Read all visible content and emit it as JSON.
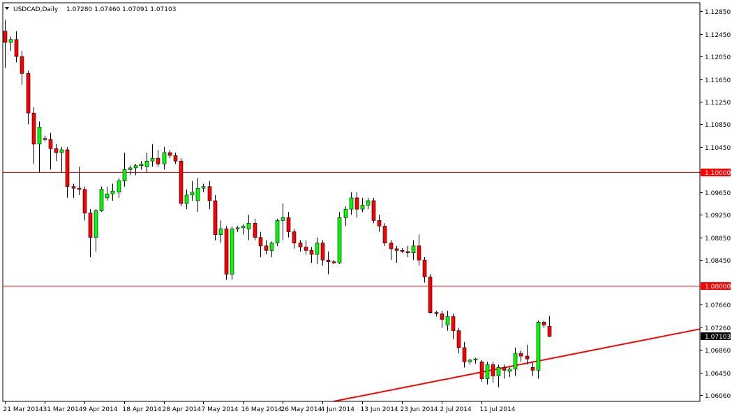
{
  "chart_data": {
    "type": "candlestick",
    "title": "USDCAD,Daily",
    "header_ohlc": "1.07280 1.07460 1.07091 1.07103",
    "symbol_menu_icon": "triangle-down-icon",
    "ylim": [
      1.0595,
      1.13
    ],
    "y_ticks": [
      "1.12850",
      "1.12450",
      "1.12050",
      "1.11650",
      "1.11250",
      "1.10850",
      "1.10450",
      "1.10000",
      "1.09650",
      "1.09250",
      "1.08850",
      "1.08450",
      "1.08000",
      "1.07660",
      "1.07260",
      "1.06860",
      "1.06450",
      "1.06060"
    ],
    "x_labels": [
      "21 Mar 2014",
      "31 Mar 2014",
      "9 Apr 2014",
      "18 Apr 2014",
      "28 Apr 2014",
      "7 May 2014",
      "16 May 2014",
      "26 May 2014",
      "4 Jun 2014",
      "13 Jun 2014",
      "23 Jun 2014",
      "2 Jul 2014",
      "11 Jul 2014"
    ],
    "x_label_bar_index": [
      0,
      7,
      14,
      21,
      28,
      35,
      42,
      49,
      56,
      63,
      70,
      77,
      84
    ],
    "levels": [
      {
        "value": 1.1,
        "label": "1.10000",
        "color": "#ff0000"
      },
      {
        "value": 1.08,
        "label": "1.08000",
        "color": "#ff0000"
      }
    ],
    "current_price": {
      "value": 1.07103,
      "label": "1.07103"
    },
    "trendline": {
      "color": "#ff0000",
      "from": [
        58,
        1.0595
      ],
      "to": [
        111,
        1.07
      ]
    },
    "colors": {
      "bull": "#00ff00",
      "bear": "#ff0000",
      "wick": "#000000",
      "grid_line": "#ff0000",
      "axis": "#000000"
    },
    "candles": [
      {
        "o": 1.125,
        "h": 1.127,
        "l": 1.1185,
        "c": 1.123
      },
      {
        "o": 1.123,
        "h": 1.124,
        "l": 1.1215,
        "c": 1.1235
      },
      {
        "o": 1.1235,
        "h": 1.125,
        "l": 1.1195,
        "c": 1.1205
      },
      {
        "o": 1.1205,
        "h": 1.1215,
        "l": 1.1155,
        "c": 1.1175
      },
      {
        "o": 1.1175,
        "h": 1.118,
        "l": 1.1085,
        "c": 1.1105
      },
      {
        "o": 1.1105,
        "h": 1.1115,
        "l": 1.1015,
        "c": 1.105
      },
      {
        "o": 1.105,
        "h": 1.109,
        "l": 1.1,
        "c": 1.108
      },
      {
        "o": 1.106,
        "h": 1.1065,
        "l": 1.1055,
        "c": 1.1058
      },
      {
        "o": 1.1058,
        "h": 1.107,
        "l": 1.1005,
        "c": 1.1042
      },
      {
        "o": 1.1042,
        "h": 1.105,
        "l": 1.102,
        "c": 1.1035
      },
      {
        "o": 1.1035,
        "h": 1.1045,
        "l": 1.1,
        "c": 1.104
      },
      {
        "o": 1.104,
        "h": 1.1045,
        "l": 1.0955,
        "c": 1.0975
      },
      {
        "o": 1.0975,
        "h": 1.098,
        "l": 1.0955,
        "c": 1.0972
      },
      {
        "o": 1.0972,
        "h": 1.101,
        "l": 1.096,
        "c": 1.097
      },
      {
        "o": 1.097,
        "h": 1.0975,
        "l": 1.0915,
        "c": 1.0928
      },
      {
        "o": 1.0928,
        "h": 1.0935,
        "l": 1.085,
        "c": 1.0885
      },
      {
        "o": 1.0885,
        "h": 1.0935,
        "l": 1.086,
        "c": 1.0932
      },
      {
        "o": 1.0932,
        "h": 1.0975,
        "l": 1.093,
        "c": 1.097
      },
      {
        "o": 1.0955,
        "h": 1.0975,
        "l": 1.095,
        "c": 1.0962
      },
      {
        "o": 1.0962,
        "h": 1.098,
        "l": 1.095,
        "c": 1.0967
      },
      {
        "o": 1.0965,
        "h": 1.099,
        "l": 1.0955,
        "c": 1.0985
      },
      {
        "o": 1.0985,
        "h": 1.1035,
        "l": 1.0975,
        "c": 1.1005
      },
      {
        "o": 1.1005,
        "h": 1.1012,
        "l": 1.0995,
        "c": 1.1008
      },
      {
        "o": 1.1008,
        "h": 1.1015,
        "l": 1.0995,
        "c": 1.1012
      },
      {
        "o": 1.1012,
        "h": 1.102,
        "l": 1.1005,
        "c": 1.1015
      },
      {
        "o": 1.101,
        "h": 1.1035,
        "l": 1.1,
        "c": 1.102
      },
      {
        "o": 1.102,
        "h": 1.105,
        "l": 1.101,
        "c": 1.1025
      },
      {
        "o": 1.1025,
        "h": 1.104,
        "l": 1.101,
        "c": 1.1015
      },
      {
        "o": 1.1015,
        "h": 1.1045,
        "l": 1.1005,
        "c": 1.1035
      },
      {
        "o": 1.1035,
        "h": 1.104,
        "l": 1.1025,
        "c": 1.103
      },
      {
        "o": 1.103,
        "h": 1.1035,
        "l": 1.1015,
        "c": 1.102
      },
      {
        "o": 1.102,
        "h": 1.1025,
        "l": 1.094,
        "c": 1.0945
      },
      {
        "o": 1.0945,
        "h": 1.097,
        "l": 1.0935,
        "c": 1.096
      },
      {
        "o": 1.096,
        "h": 1.0985,
        "l": 1.095,
        "c": 1.0965
      },
      {
        "o": 1.095,
        "h": 1.099,
        "l": 1.093,
        "c": 1.0972
      },
      {
        "o": 1.0972,
        "h": 1.098,
        "l": 1.0965,
        "c": 1.0975
      },
      {
        "o": 1.0975,
        "h": 1.0985,
        "l": 1.0935,
        "c": 1.095
      },
      {
        "o": 1.095,
        "h": 1.096,
        "l": 1.088,
        "c": 1.089
      },
      {
        "o": 1.089,
        "h": 1.0915,
        "l": 1.0875,
        "c": 1.09
      },
      {
        "o": 1.09,
        "h": 1.0905,
        "l": 1.081,
        "c": 1.082
      },
      {
        "o": 1.082,
        "h": 1.0905,
        "l": 1.081,
        "c": 1.09
      },
      {
        "o": 1.09,
        "h": 1.0905,
        "l": 1.0895,
        "c": 1.0902
      },
      {
        "o": 1.0902,
        "h": 1.0908,
        "l": 1.089,
        "c": 1.0905
      },
      {
        "o": 1.09,
        "h": 1.0925,
        "l": 1.088,
        "c": 1.091
      },
      {
        "o": 1.091,
        "h": 1.0918,
        "l": 1.088,
        "c": 1.0885
      },
      {
        "o": 1.0885,
        "h": 1.0895,
        "l": 1.085,
        "c": 1.087
      },
      {
        "o": 1.087,
        "h": 1.088,
        "l": 1.0855,
        "c": 1.0862
      },
      {
        "o": 1.0862,
        "h": 1.0878,
        "l": 1.085,
        "c": 1.0875
      },
      {
        "o": 1.0875,
        "h": 1.0918,
        "l": 1.087,
        "c": 1.0915
      },
      {
        "o": 1.0915,
        "h": 1.0945,
        "l": 1.088,
        "c": 1.092
      },
      {
        "o": 1.092,
        "h": 1.093,
        "l": 1.0885,
        "c": 1.0895
      },
      {
        "o": 1.0895,
        "h": 1.09,
        "l": 1.0865,
        "c": 1.0875
      },
      {
        "o": 1.0875,
        "h": 1.088,
        "l": 1.086,
        "c": 1.0868
      },
      {
        "o": 1.0868,
        "h": 1.088,
        "l": 1.0855,
        "c": 1.0862
      },
      {
        "o": 1.0862,
        "h": 1.0868,
        "l": 1.084,
        "c": 1.0855
      },
      {
        "o": 1.0855,
        "h": 1.0885,
        "l": 1.0838,
        "c": 1.0875
      },
      {
        "o": 1.0875,
        "h": 1.088,
        "l": 1.0835,
        "c": 1.0845
      },
      {
        "o": 1.0845,
        "h": 1.086,
        "l": 1.082,
        "c": 1.0842
      },
      {
        "o": 1.0842,
        "h": 1.0845,
        "l": 1.0838,
        "c": 1.084
      },
      {
        "o": 1.084,
        "h": 1.093,
        "l": 1.0838,
        "c": 1.092
      },
      {
        "o": 1.092,
        "h": 1.094,
        "l": 1.0905,
        "c": 1.0935
      },
      {
        "o": 1.0935,
        "h": 1.0965,
        "l": 1.0925,
        "c": 1.0955
      },
      {
        "o": 1.0955,
        "h": 1.0965,
        "l": 1.092,
        "c": 1.0935
      },
      {
        "o": 1.0935,
        "h": 1.0955,
        "l": 1.093,
        "c": 1.0942
      },
      {
        "o": 1.0942,
        "h": 1.0955,
        "l": 1.0935,
        "c": 1.095
      },
      {
        "o": 1.095,
        "h": 1.0955,
        "l": 1.091,
        "c": 1.0915
      },
      {
        "o": 1.0915,
        "h": 1.0925,
        "l": 1.0895,
        "c": 1.0905
      },
      {
        "o": 1.0905,
        "h": 1.091,
        "l": 1.087,
        "c": 1.0875
      },
      {
        "o": 1.0875,
        "h": 1.088,
        "l": 1.0845,
        "c": 1.0865
      },
      {
        "o": 1.0865,
        "h": 1.087,
        "l": 1.084,
        "c": 1.0862
      },
      {
        "o": 1.0862,
        "h": 1.0866,
        "l": 1.0858,
        "c": 1.086
      },
      {
        "o": 1.086,
        "h": 1.087,
        "l": 1.085,
        "c": 1.0858
      },
      {
        "o": 1.0858,
        "h": 1.088,
        "l": 1.0845,
        "c": 1.087
      },
      {
        "o": 1.087,
        "h": 1.089,
        "l": 1.0835,
        "c": 1.0845
      },
      {
        "o": 1.0845,
        "h": 1.085,
        "l": 1.0805,
        "c": 1.0815
      },
      {
        "o": 1.0815,
        "h": 1.082,
        "l": 1.075,
        "c": 1.0752
      },
      {
        "o": 1.0752,
        "h": 1.0755,
        "l": 1.0745,
        "c": 1.075
      },
      {
        "o": 1.075,
        "h": 1.0755,
        "l": 1.0725,
        "c": 1.074
      },
      {
        "o": 1.073,
        "h": 1.0755,
        "l": 1.072,
        "c": 1.0745
      },
      {
        "o": 1.0745,
        "h": 1.075,
        "l": 1.0705,
        "c": 1.072
      },
      {
        "o": 1.072,
        "h": 1.0725,
        "l": 1.068,
        "c": 1.069
      },
      {
        "o": 1.069,
        "h": 1.07,
        "l": 1.0655,
        "c": 1.0665
      },
      {
        "o": 1.0665,
        "h": 1.067,
        "l": 1.066,
        "c": 1.0668
      },
      {
        "o": 1.0668,
        "h": 1.0672,
        "l": 1.0662,
        "c": 1.067
      },
      {
        "o": 1.0665,
        "h": 1.0668,
        "l": 1.063,
        "c": 1.0635
      },
      {
        "o": 1.0635,
        "h": 1.0665,
        "l": 1.0625,
        "c": 1.066
      },
      {
        "o": 1.066,
        "h": 1.0665,
        "l": 1.0628,
        "c": 1.064
      },
      {
        "o": 1.064,
        "h": 1.066,
        "l": 1.062,
        "c": 1.0655
      },
      {
        "o": 1.0655,
        "h": 1.066,
        "l": 1.0635,
        "c": 1.065
      },
      {
        "o": 1.0648,
        "h": 1.0655,
        "l": 1.0638,
        "c": 1.0652
      },
      {
        "o": 1.0652,
        "h": 1.069,
        "l": 1.064,
        "c": 1.068
      },
      {
        "o": 1.068,
        "h": 1.0685,
        "l": 1.0665,
        "c": 1.0675
      },
      {
        "o": 1.0675,
        "h": 1.0695,
        "l": 1.066,
        "c": 1.067
      },
      {
        "o": 1.0655,
        "h": 1.0665,
        "l": 1.064,
        "c": 1.065
      },
      {
        "o": 1.065,
        "h": 1.0738,
        "l": 1.0635,
        "c": 1.0735
      },
      {
        "o": 1.0735,
        "h": 1.0738,
        "l": 1.0725,
        "c": 1.073
      },
      {
        "o": 1.0728,
        "h": 1.0746,
        "l": 1.0709,
        "c": 1.071
      }
    ]
  }
}
